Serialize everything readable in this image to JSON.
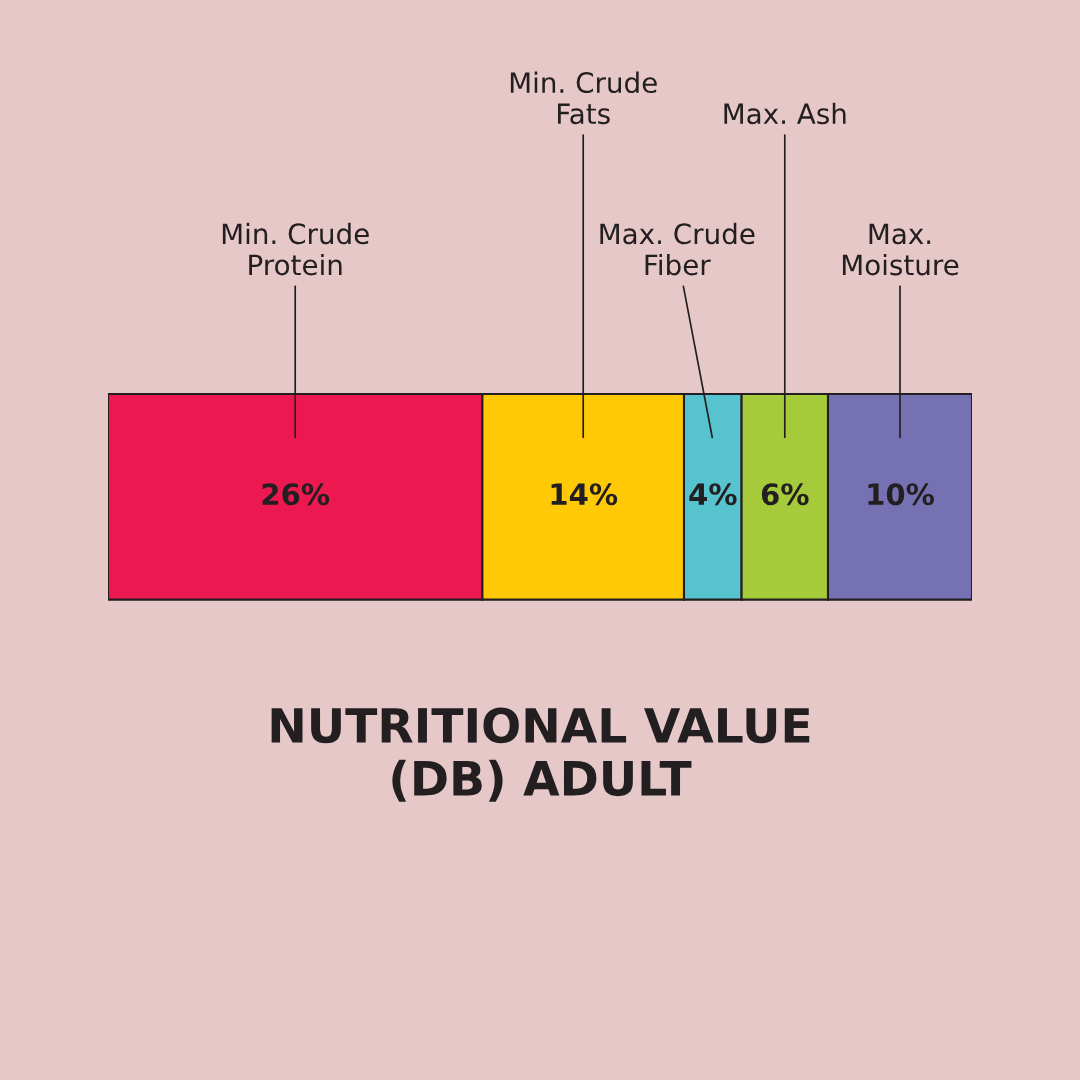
{
  "chart_data": {
    "type": "bar",
    "orientation": "horizontal",
    "stacked": true,
    "title": "NUTRITIONAL VALUE\n(DB) ADULT",
    "categories": [
      null
    ],
    "series": [
      {
        "name": "Min. Crude\nProtein",
        "color": "#ec1850",
        "values": [
          26
        ],
        "value_labels": [
          "26%"
        ]
      },
      {
        "name": "Min. Crude\nFats",
        "color": "#ffc906",
        "values": [
          14
        ],
        "value_labels": [
          "14%"
        ]
      },
      {
        "name": "Max. Crude\nFiber",
        "color": "#56c3cf",
        "values": [
          4
        ],
        "value_labels": [
          "4%"
        ]
      },
      {
        "name": "Max. Ash",
        "color": "#a5cb3a",
        "values": [
          6
        ],
        "value_labels": [
          "6%"
        ]
      },
      {
        "name": "Max.\nMoisture",
        "color": "#7571b3",
        "values": [
          10
        ],
        "value_labels": [
          "10%"
        ]
      }
    ]
  }
}
